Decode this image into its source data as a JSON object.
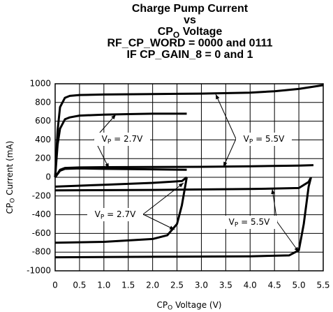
{
  "chart_data": {
    "type": "line",
    "title": [
      "Charge Pump Current",
      "vs",
      {
        "text": "CP",
        "sub": "O",
        "rest": " Voltage"
      },
      "RF_CP_WORD = 0000 and 0111",
      "IF CP_GAIN_8 = 0 and 1"
    ],
    "xlabel": {
      "text": "CP",
      "sub": "O",
      "rest": " Voltage (V)"
    },
    "ylabel": {
      "text": "CP",
      "sub": "O",
      "rest": " Current (mA)"
    },
    "xlim": [
      0,
      5.5
    ],
    "ylim": [
      -1000,
      1000
    ],
    "xticks": [
      0,
      0.5,
      {
        "value": 1,
        "label": "1.0"
      },
      1.5,
      {
        "value": 2,
        "label": "2.0"
      },
      2.5,
      {
        "value": 3,
        "label": "3.0"
      },
      3.5,
      {
        "value": 4,
        "label": "4.0"
      },
      4.5,
      {
        "value": 5,
        "label": "5.0"
      },
      5.5
    ],
    "yticks": [
      -1000,
      -800,
      -600,
      -400,
      -200,
      0,
      200,
      400,
      600,
      800,
      1000
    ],
    "grid": true,
    "annotations": [
      {
        "text": "V",
        "sub": "P",
        "rest": " = 2.7V"
      },
      {
        "text": "V",
        "sub": "P",
        "rest": " = 5.5V"
      },
      {
        "text": "V",
        "sub": "P",
        "rest": " = 2.7V"
      },
      {
        "text": "V",
        "sub": "P",
        "rest": " = 5.5V"
      }
    ],
    "series": [
      {
        "color": "#000000",
        "x": [
          0,
          0.05,
          0.1,
          0.2,
          0.3,
          0.5,
          1,
          2,
          3,
          4,
          4.5,
          5,
          5.5
        ],
        "values": [
          0,
          500,
          750,
          850,
          870,
          880,
          885,
          890,
          895,
          905,
          920,
          945,
          985
        ]
      },
      {
        "color": "#000000",
        "x": [
          0,
          0.05,
          0.1,
          0.2,
          0.3,
          0.5,
          1,
          1.5,
          2,
          2.7
        ],
        "values": [
          0,
          350,
          520,
          620,
          640,
          660,
          670,
          675,
          680,
          680
        ]
      },
      {
        "color": "#000000",
        "x": [
          0,
          0.1,
          0.2,
          0.5,
          1,
          2,
          3,
          4,
          5,
          5.3
        ],
        "values": [
          0,
          80,
          100,
          105,
          108,
          110,
          112,
          118,
          125,
          130
        ]
      },
      {
        "color": "#000000",
        "x": [
          0,
          0.1,
          0.2,
          0.5,
          1,
          2,
          2.7
        ],
        "values": [
          0,
          70,
          90,
          95,
          90,
          85,
          80
        ]
      },
      {
        "color": "#000000",
        "x": [
          0,
          1,
          2,
          2.6,
          2.7
        ],
        "values": [
          -100,
          -80,
          -60,
          -40,
          0
        ]
      },
      {
        "color": "#000000",
        "x": [
          0,
          2,
          4,
          5,
          5.2,
          5.25
        ],
        "values": [
          -140,
          -135,
          -125,
          -115,
          -50,
          0
        ]
      },
      {
        "color": "#000000",
        "x": [
          0,
          1,
          2,
          2.3,
          2.5,
          2.6,
          2.7
        ],
        "values": [
          -700,
          -690,
          -660,
          -620,
          -500,
          -300,
          0
        ]
      },
      {
        "color": "#000000",
        "x": [
          0,
          2,
          4,
          4.8,
          5,
          5.1,
          5.2,
          5.25
        ],
        "values": [
          -855,
          -850,
          -845,
          -835,
          -780,
          -500,
          -100,
          0
        ]
      }
    ]
  }
}
